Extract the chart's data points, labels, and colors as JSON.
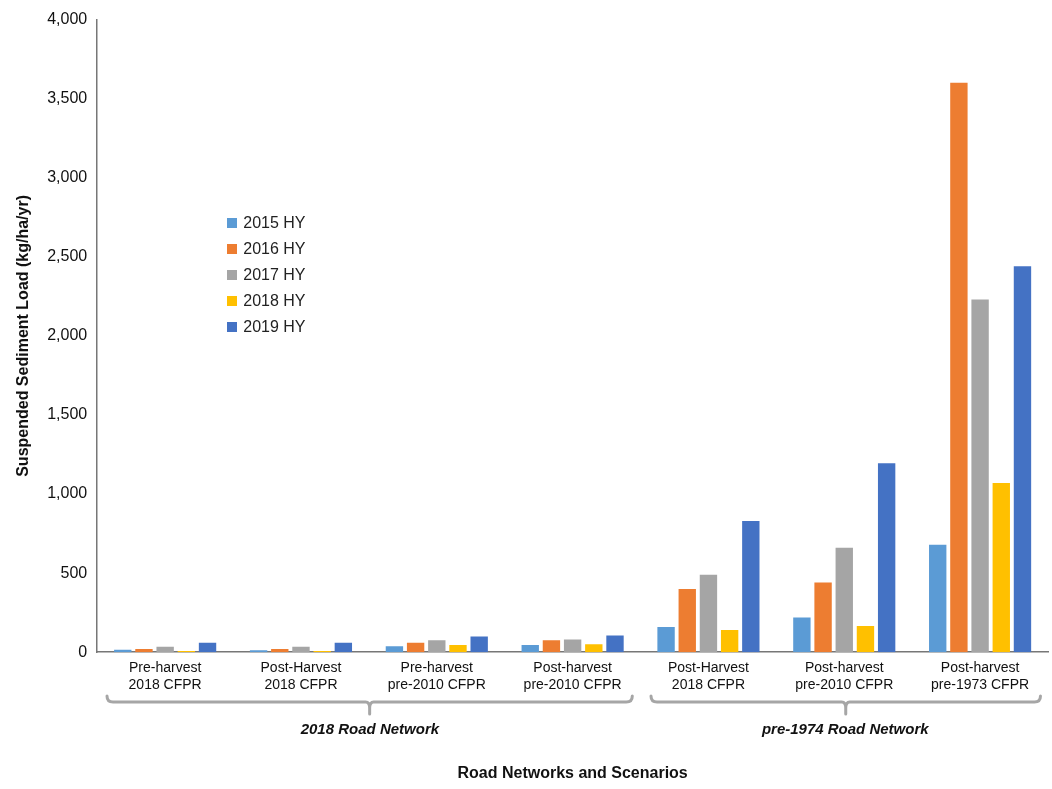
{
  "chart_data": {
    "type": "bar",
    "xlabel": "Road Networks and Scenarios",
    "ylabel": "Suspended Sediment Load (kg/ha/yr)",
    "categories": [
      "Pre-harvest\n2018 CFPR",
      "Post-Harvest\n2018 CFPR",
      "Pre-harvest\npre-2010 CFPR",
      "Post-harvest\npre-2010 CFPR",
      "Post-Harvest\n2018 CFPR",
      "Post-harvest\npre-2010 CFPR",
      "Post-harvest\npre-1973 CFPR"
    ],
    "series": [
      {
        "name": "2015 HY",
        "color": "#5b9bd5",
        "values": [
          15,
          12,
          38,
          45,
          160,
          220,
          680
        ]
      },
      {
        "name": "2016 HY",
        "color": "#ed7d31",
        "values": [
          20,
          20,
          60,
          75,
          400,
          440,
          3600
        ]
      },
      {
        "name": "2017 HY",
        "color": "#a5a5a5",
        "values": [
          35,
          35,
          75,
          80,
          490,
          660,
          2230
        ]
      },
      {
        "name": "2018 HY",
        "color": "#ffc000",
        "values": [
          8,
          8,
          45,
          50,
          140,
          165,
          1070
        ]
      },
      {
        "name": "2019 HY",
        "color": "#4472c4",
        "values": [
          60,
          60,
          100,
          105,
          830,
          1195,
          2440
        ]
      }
    ],
    "ylim": [
      0,
      4000
    ],
    "yticks": [
      0,
      500,
      {
        "value": 1000,
        "label": "1,000"
      },
      {
        "value": 1500,
        "label": "1,500"
      },
      {
        "value": 2000,
        "label": "2,000"
      },
      {
        "value": 2500,
        "label": "2,500"
      },
      {
        "value": 3000,
        "label": "3,000"
      },
      {
        "value": 3500,
        "label": "3,500"
      },
      {
        "value": 4000,
        "label": "4,000"
      }
    ],
    "grid": false,
    "legend": "top left",
    "annotations": [
      "2018 Road Network",
      "pre-1974 Road Network"
    ]
  }
}
